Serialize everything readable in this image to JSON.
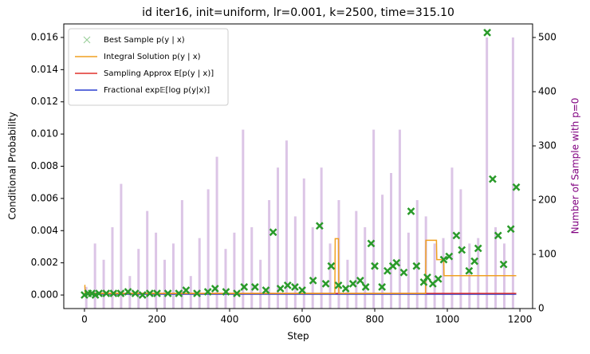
{
  "chart_data": {
    "type": "combo",
    "title": "id iter16, init=uniform, lr=0.001, k=2500, time=315.10",
    "xlabel": "Step",
    "ylabel": "Conditional Probability",
    "y2label": "Number of Sample with p=0",
    "xlim": [
      -57,
      1235
    ],
    "xticks": [
      0,
      200,
      400,
      600,
      800,
      1000,
      1200
    ],
    "ylim": [
      -0.00084,
      0.01684
    ],
    "yticks": [
      {
        "value": 0,
        "label": "0.000"
      },
      {
        "value": 0.002,
        "label": "0.002"
      },
      {
        "value": 0.004,
        "label": "0.004"
      },
      {
        "value": 0.006,
        "label": "0.006"
      },
      {
        "value": 0.008,
        "label": "0.008"
      },
      {
        "value": 0.01,
        "label": "0.010"
      },
      {
        "value": 0.012,
        "label": "0.012"
      },
      {
        "value": 0.014,
        "label": "0.014"
      },
      {
        "value": 0.016,
        "label": "0.016"
      }
    ],
    "y2lim": [
      0,
      525
    ],
    "y2ticks": [
      0,
      100,
      200,
      300,
      400,
      500
    ],
    "legend": "upper left",
    "series": [
      {
        "kind": "bar",
        "axis": "y2",
        "color": "#9b59b6",
        "x": [
          5,
          29,
          53,
          77,
          101,
          125,
          149,
          173,
          197,
          221,
          245,
          269,
          293,
          317,
          341,
          365,
          389,
          413,
          437,
          461,
          485,
          509,
          533,
          557,
          581,
          605,
          629,
          653,
          677,
          701,
          725,
          749,
          773,
          797,
          821,
          845,
          869,
          893,
          917,
          941,
          965,
          989,
          1013,
          1037,
          1061,
          1085,
          1109,
          1133,
          1157,
          1181
        ],
        "values": [
          40,
          120,
          90,
          150,
          230,
          60,
          110,
          180,
          140,
          90,
          120,
          200,
          60,
          130,
          220,
          280,
          110,
          140,
          330,
          150,
          90,
          200,
          260,
          310,
          170,
          240,
          150,
          260,
          120,
          200,
          90,
          180,
          150,
          330,
          210,
          250,
          330,
          140,
          200,
          170,
          120,
          130,
          260,
          220,
          120,
          130,
          500,
          150,
          120,
          500
        ]
      },
      {
        "kind": "line",
        "name": "Fractional exp𝔼[log p(y|x)]",
        "color": "#2a3fd1",
        "x": [
          0,
          1190
        ],
        "values": [
          5e-05,
          5e-05
        ]
      },
      {
        "kind": "line",
        "name": "Sampling Approx E[p(y | x)]",
        "color": "#e0302a",
        "x": [
          0,
          1190
        ],
        "values": [
          0.0001,
          0.0001
        ]
      },
      {
        "kind": "line",
        "name": "Integral Solution p(y | x)",
        "color": "#f0a020",
        "x": [
          0,
          1,
          2,
          690,
          691,
          700,
          701,
          940,
          941,
          970,
          971,
          990,
          991,
          1190
        ],
        "values": [
          0.0006,
          0.0006,
          0.0001,
          0.0001,
          0.0035,
          0.0035,
          0.0001,
          0.0001,
          0.0034,
          0.0034,
          0.0022,
          0.0022,
          0.0012,
          0.0012
        ]
      },
      {
        "kind": "scatter",
        "name": "Best Sample p(y | x)",
        "color": "#2a9a2a",
        "x": [
          0,
          10,
          20,
          30,
          40,
          60,
          80,
          100,
          120,
          140,
          160,
          180,
          200,
          230,
          260,
          280,
          310,
          340,
          360,
          390,
          420,
          440,
          470,
          500,
          520,
          540,
          560,
          580,
          600,
          630,
          648,
          665,
          680,
          700,
          720,
          740,
          760,
          775,
          790,
          800,
          820,
          835,
          850,
          860,
          880,
          900,
          915,
          935,
          945,
          960,
          975,
          990,
          1005,
          1025,
          1040,
          1060,
          1075,
          1085,
          1110,
          1125,
          1140,
          1155,
          1175,
          1190
        ],
        "values": [
          0,
          0.0001,
          0.0001,
          0,
          0.0001,
          0.0001,
          0.0001,
          0.0001,
          0.0002,
          0.0001,
          0,
          0.0001,
          0.0001,
          0.0001,
          0.0001,
          0.0003,
          0.0001,
          0.0002,
          0.0004,
          0.0002,
          0.0001,
          0.0005,
          0.0005,
          0.0003,
          0.0039,
          0.0004,
          0.0006,
          0.0005,
          0.0003,
          0.0009,
          0.0043,
          0.0007,
          0.0018,
          0.0006,
          0.0004,
          0.0007,
          0.0009,
          0.0005,
          0.0032,
          0.0018,
          0.0005,
          0.0015,
          0.0018,
          0.002,
          0.0014,
          0.0052,
          0.0018,
          0.0008,
          0.0011,
          0.0007,
          0.001,
          0.0022,
          0.0024,
          0.0037,
          0.0028,
          0.0015,
          0.0021,
          0.0029,
          0.0163,
          0.0072,
          0.0037,
          0.0019,
          0.0041,
          0.0067
        ]
      }
    ]
  }
}
